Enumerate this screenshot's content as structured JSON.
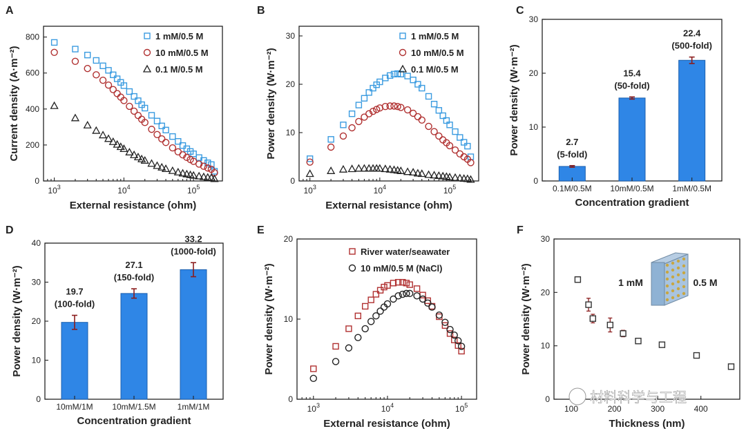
{
  "chart_data": [
    {
      "panel": "A",
      "type": "scatter",
      "xscale": "log",
      "xlabel": "External resistance (ohm)",
      "ylabel": "Current density (A·m⁻²)",
      "xlim": [
        700,
        260000
      ],
      "ylim": [
        0,
        860
      ],
      "xticks": [
        {
          "v": 1000,
          "base": "10",
          "exp": "3"
        },
        {
          "v": 10000,
          "base": "10",
          "exp": "4"
        },
        {
          "v": 100000,
          "base": "10",
          "exp": "5"
        }
      ],
      "yticks": [
        {
          "v": 0,
          "label": "0"
        },
        {
          "v": 200,
          "label": "200"
        },
        {
          "v": 400,
          "label": "400"
        },
        {
          "v": 600,
          "label": "600"
        },
        {
          "v": 800,
          "label": "800"
        }
      ],
      "legend_position": "top-right",
      "series": [
        {
          "name": "1 mM/0.5 M",
          "marker": "square",
          "color": "#3a9be0",
          "x": [
            1000,
            2000,
            3000,
            4000,
            5000,
            6000,
            7000,
            8000,
            9000,
            10000,
            12000,
            14000,
            16000,
            18000,
            20000,
            25000,
            30000,
            35000,
            40000,
            50000,
            60000,
            70000,
            80000,
            90000,
            100000,
            120000,
            140000,
            160000,
            180000,
            200000
          ],
          "y": [
            770,
            733,
            700,
            670,
            640,
            615,
            590,
            568,
            548,
            530,
            497,
            470,
            446,
            424,
            405,
            365,
            333,
            306,
            283,
            247,
            220,
            197,
            179,
            164,
            151,
            130,
            114,
            101,
            91,
            54
          ]
        },
        {
          "name": "10 mM/0.5 M",
          "marker": "circle",
          "color": "#b03030",
          "x": [
            1000,
            2000,
            3000,
            4000,
            5000,
            6000,
            7000,
            8000,
            9000,
            10000,
            12000,
            14000,
            16000,
            18000,
            20000,
            25000,
            30000,
            35000,
            40000,
            50000,
            60000,
            70000,
            80000,
            90000,
            100000,
            120000,
            140000,
            160000,
            180000,
            200000
          ],
          "y": [
            715,
            665,
            625,
            590,
            560,
            533,
            508,
            486,
            466,
            447,
            415,
            388,
            364,
            343,
            325,
            287,
            258,
            234,
            214,
            184,
            162,
            145,
            131,
            119,
            109,
            94,
            82,
            72,
            65,
            46
          ]
        },
        {
          "name": "0.1 M/0.5 M",
          "marker": "triangle",
          "color": "#222222",
          "x": [
            1000,
            2000,
            3000,
            4000,
            5000,
            6000,
            7000,
            8000,
            9000,
            10000,
            12000,
            14000,
            16000,
            18000,
            20000,
            25000,
            30000,
            35000,
            40000,
            50000,
            60000,
            70000,
            80000,
            90000,
            100000,
            120000,
            140000,
            160000,
            180000,
            200000
          ],
          "y": [
            418,
            350,
            310,
            280,
            255,
            235,
            218,
            203,
            190,
            179,
            160,
            145,
            133,
            122,
            114,
            97,
            85,
            76,
            68,
            57,
            49,
            43,
            38,
            34,
            31,
            27,
            23,
            20,
            18,
            12
          ]
        }
      ]
    },
    {
      "panel": "B",
      "type": "scatter",
      "xscale": "log",
      "xlabel": "External resistance (ohm)",
      "ylabel": "Power density (W·m⁻²)",
      "xlim": [
        700,
        260000
      ],
      "ylim": [
        0,
        32
      ],
      "xticks": [
        {
          "v": 1000,
          "base": "10",
          "exp": "3"
        },
        {
          "v": 10000,
          "base": "10",
          "exp": "4"
        },
        {
          "v": 100000,
          "base": "10",
          "exp": "5"
        }
      ],
      "yticks": [
        {
          "v": 0,
          "label": "0"
        },
        {
          "v": 10,
          "label": "10"
        },
        {
          "v": 20,
          "label": "20"
        },
        {
          "v": 30,
          "label": "30"
        }
      ],
      "legend_position": "top-right",
      "series": [
        {
          "name": "1 mM/0.5 M",
          "marker": "square",
          "color": "#3a9be0",
          "x": [
            1000,
            2000,
            3000,
            4000,
            5000,
            6000,
            7000,
            8000,
            9000,
            10000,
            12000,
            14000,
            16000,
            18000,
            20000,
            25000,
            30000,
            35000,
            40000,
            50000,
            60000,
            70000,
            80000,
            90000,
            100000,
            120000,
            140000,
            160000,
            180000,
            200000
          ],
          "y": [
            4.6,
            8.6,
            11.6,
            13.9,
            15.7,
            17.1,
            18.3,
            19.2,
            19.9,
            20.5,
            21.3,
            21.8,
            22.1,
            22.2,
            22.1,
            21.7,
            20.9,
            20.0,
            19.2,
            17.5,
            15.9,
            14.6,
            13.5,
            12.5,
            11.6,
            10.2,
            9.0,
            8.0,
            7.2,
            5.0
          ]
        },
        {
          "name": "10 mM/0.5 M",
          "marker": "circle",
          "color": "#b03030",
          "x": [
            1000,
            2000,
            3000,
            4000,
            5000,
            6000,
            7000,
            8000,
            9000,
            10000,
            12000,
            14000,
            16000,
            18000,
            20000,
            25000,
            30000,
            35000,
            40000,
            50000,
            60000,
            70000,
            80000,
            90000,
            100000,
            120000,
            140000,
            160000,
            180000,
            200000
          ],
          "y": [
            3.9,
            7.0,
            9.3,
            11.0,
            12.3,
            13.2,
            13.9,
            14.4,
            14.8,
            15.1,
            15.4,
            15.5,
            15.5,
            15.4,
            15.2,
            14.7,
            14.0,
            13.3,
            12.6,
            11.3,
            10.2,
            9.3,
            8.5,
            7.9,
            7.3,
            6.4,
            5.6,
            5.0,
            4.5,
            3.8
          ]
        },
        {
          "name": "0.1 M/0.5 M",
          "marker": "triangle",
          "color": "#222222",
          "x": [
            1000,
            2000,
            3000,
            4000,
            5000,
            6000,
            7000,
            8000,
            9000,
            10000,
            12000,
            14000,
            16000,
            18000,
            20000,
            25000,
            30000,
            35000,
            40000,
            50000,
            60000,
            70000,
            80000,
            90000,
            100000,
            120000,
            140000,
            160000,
            180000,
            200000
          ],
          "y": [
            1.5,
            2.1,
            2.4,
            2.5,
            2.6,
            2.6,
            2.6,
            2.6,
            2.6,
            2.6,
            2.5,
            2.4,
            2.3,
            2.2,
            2.1,
            1.9,
            1.8,
            1.6,
            1.5,
            1.3,
            1.2,
            1.1,
            1.0,
            0.9,
            0.8,
            0.7,
            0.6,
            0.5,
            0.45,
            0.3
          ]
        }
      ]
    },
    {
      "panel": "C",
      "type": "bar",
      "xlabel": "Concentration gradient",
      "ylabel": "Power density (W·m⁻²)",
      "ylim": [
        0,
        30
      ],
      "yticks": [
        {
          "v": 0,
          "label": "0"
        },
        {
          "v": 10,
          "label": "10"
        },
        {
          "v": 20,
          "label": "20"
        },
        {
          "v": 30,
          "label": "30"
        }
      ],
      "categories": [
        "0.1M/0.5M",
        "10mM/0.5M",
        "1mM/0.5M"
      ],
      "values": [
        2.7,
        15.4,
        22.4
      ],
      "errors": [
        0.15,
        0.2,
        0.6
      ],
      "value_labels": [
        "2.7",
        "15.4",
        "22.4"
      ],
      "fold_labels": [
        "(5-fold)",
        "(50-fold)",
        "(500-fold)"
      ],
      "bar_color": "#2f86e6"
    },
    {
      "panel": "D",
      "type": "bar",
      "xlabel": "Concentration gradient",
      "ylabel": "Power density (W·m⁻²)",
      "ylim": [
        0,
        40
      ],
      "yticks": [
        {
          "v": 0,
          "label": "0"
        },
        {
          "v": 10,
          "label": "10"
        },
        {
          "v": 20,
          "label": "20"
        },
        {
          "v": 30,
          "label": "30"
        },
        {
          "v": 40,
          "label": "40"
        }
      ],
      "categories": [
        "10mM/1M",
        "10mM/1.5M",
        "1mM/1M"
      ],
      "values": [
        19.7,
        27.1,
        33.2
      ],
      "errors": [
        1.8,
        1.2,
        1.8
      ],
      "value_labels": [
        "19.7",
        "27.1",
        "33.2"
      ],
      "fold_labels": [
        "(100-fold)",
        "(150-fold)",
        "(1000-fold)"
      ],
      "bar_color": "#2f86e6"
    },
    {
      "panel": "E",
      "type": "scatter",
      "xscale": "log",
      "xlabel": "External resistance (ohm)",
      "ylabel": "Power density (W·m⁻²)",
      "xlim": [
        600,
        160000
      ],
      "ylim": [
        0,
        20
      ],
      "xticks": [
        {
          "v": 1000,
          "base": "10",
          "exp": "3"
        },
        {
          "v": 10000,
          "base": "10",
          "exp": "4"
        },
        {
          "v": 100000,
          "base": "10",
          "exp": "5"
        }
      ],
      "yticks": [
        {
          "v": 0,
          "label": "0"
        },
        {
          "v": 10,
          "label": "10"
        },
        {
          "v": 20,
          "label": "20"
        }
      ],
      "legend_position": "top-right",
      "series": [
        {
          "name": "River water/seawater",
          "marker": "square",
          "color": "#b03030",
          "x": [
            1000,
            2000,
            3000,
            4000,
            5000,
            6000,
            7000,
            8000,
            9000,
            10000,
            12000,
            14000,
            16000,
            18000,
            20000,
            25000,
            30000,
            35000,
            40000,
            50000,
            60000,
            70000,
            80000,
            90000,
            100000
          ],
          "y": [
            3.8,
            6.6,
            8.8,
            10.4,
            11.6,
            12.4,
            13.1,
            13.6,
            14.0,
            14.2,
            14.5,
            14.6,
            14.6,
            14.5,
            14.3,
            13.8,
            13.0,
            12.3,
            11.6,
            10.3,
            9.2,
            8.2,
            7.4,
            6.7,
            6.0
          ]
        },
        {
          "name": "10 mM/0.5 M (NaCl)",
          "marker": "circle",
          "color": "#222222",
          "x": [
            1000,
            2000,
            3000,
            4000,
            5000,
            6000,
            7000,
            8000,
            9000,
            10000,
            12000,
            14000,
            16000,
            18000,
            20000,
            25000,
            30000,
            35000,
            40000,
            50000,
            60000,
            70000,
            80000,
            90000,
            100000
          ],
          "y": [
            2.6,
            4.7,
            6.4,
            7.7,
            8.8,
            9.7,
            10.4,
            11.0,
            11.5,
            11.9,
            12.5,
            12.9,
            13.1,
            13.2,
            13.2,
            12.9,
            12.5,
            12.0,
            11.5,
            10.5,
            9.6,
            8.7,
            8.0,
            7.3,
            6.6
          ]
        }
      ]
    },
    {
      "panel": "F",
      "type": "scatter",
      "xlabel": "Thickness (nm)",
      "ylabel": "Power density (W·m⁻²)",
      "xlim": [
        60,
        490
      ],
      "ylim": [
        0,
        30
      ],
      "xticks": [
        {
          "v": 100,
          "label": "100"
        },
        {
          "v": 200,
          "label": "200"
        },
        {
          "v": 300,
          "label": "300"
        },
        {
          "v": 400,
          "label": "400"
        }
      ],
      "yticks": [
        {
          "v": 0,
          "label": "0"
        },
        {
          "v": 10,
          "label": "10"
        },
        {
          "v": 20,
          "label": "20"
        },
        {
          "v": 30,
          "label": "30"
        }
      ],
      "series": [
        {
          "name": "thickness",
          "marker": "square",
          "color": "#b03030",
          "x": [
            115,
            140,
            150,
            190,
            220,
            255,
            310,
            390,
            470
          ],
          "y": [
            22.4,
            17.7,
            15.1,
            13.9,
            12.3,
            10.9,
            10.2,
            8.2,
            6.1
          ],
          "errors": [
            0.5,
            1.2,
            0.8,
            1.3,
            0.6,
            0.4,
            0.4,
            0.3,
            0.3
          ]
        }
      ],
      "annotations": [
        "1 mM",
        "0.5 M"
      ]
    }
  ],
  "panel_letters": [
    "A",
    "B",
    "C",
    "D",
    "E",
    "F"
  ],
  "watermark": "材料科学与工程"
}
